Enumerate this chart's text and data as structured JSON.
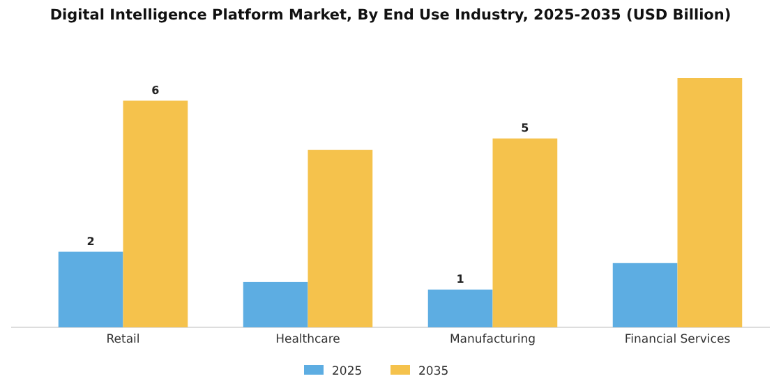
{
  "chart_data": {
    "type": "bar",
    "title": "Digital Intelligence Platform Market, By End Use Industry, 2025-2035 (USD Billion)",
    "categories": [
      "Retail",
      "Healthcare",
      "Manufacturing",
      "Financial Services"
    ],
    "legend": "bottom",
    "series": [
      {
        "name": "2025",
        "color": "#5dade2",
        "values": [
          2,
          1.2,
          1,
          1.7
        ],
        "value_labels": [
          "2",
          null,
          "1",
          null
        ]
      },
      {
        "name": "2035",
        "color": "#f5c24c",
        "values": [
          6,
          4.7,
          5,
          6.6
        ],
        "value_labels": [
          "6",
          null,
          "5",
          null
        ]
      }
    ]
  }
}
